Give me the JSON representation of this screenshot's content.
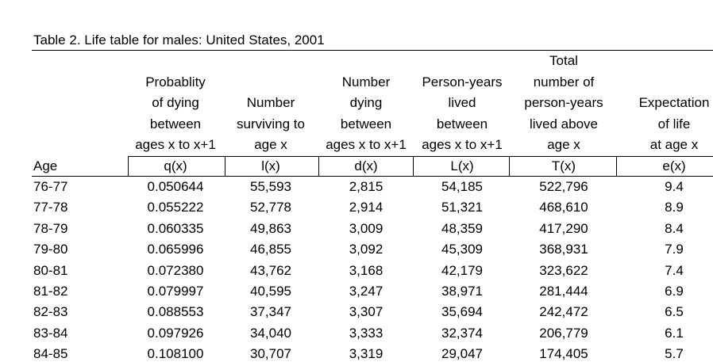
{
  "title": "Table 2. Life table for males: United States, 2001",
  "age_label": "Age",
  "columns": [
    {
      "lines": [
        "Probablity",
        "of dying",
        "between",
        "ages x to x+1"
      ],
      "symbol": "q(x)"
    },
    {
      "lines": [
        "Number",
        "surviving to",
        "age x"
      ],
      "symbol": "l(x)"
    },
    {
      "lines": [
        "Number",
        "dying",
        "between",
        "ages x to x+1"
      ],
      "symbol": "d(x)"
    },
    {
      "lines": [
        "Person-years",
        "lived",
        "between",
        "ages x to x+1"
      ],
      "symbol": "L(x)"
    },
    {
      "lines": [
        "Total",
        "number of",
        "person-years",
        "lived above",
        "age x"
      ],
      "symbol": "T(x)"
    },
    {
      "lines": [
        "Expectation",
        "of life",
        "at age x"
      ],
      "symbol": "e(x)"
    }
  ],
  "rows": [
    [
      "76-77",
      "0.050644",
      "55,593",
      "2,815",
      "54,185",
      "522,796",
      "9.4"
    ],
    [
      "77-78",
      "0.055222",
      "52,778",
      "2,914",
      "51,321",
      "468,610",
      "8.9"
    ],
    [
      "78-79",
      "0.060335",
      "49,863",
      "3,009",
      "48,359",
      "417,290",
      "8.4"
    ],
    [
      "79-80",
      "0.065996",
      "46,855",
      "3,092",
      "45,309",
      "368,931",
      "7.9"
    ],
    [
      "80-81",
      "0.072380",
      "43,762",
      "3,168",
      "42,179",
      "323,622",
      "7.4"
    ],
    [
      "81-82",
      "0.079997",
      "40,595",
      "3,247",
      "38,971",
      "281,444",
      "6.9"
    ],
    [
      "82-83",
      "0.088553",
      "37,347",
      "3,307",
      "35,694",
      "242,472",
      "6.5"
    ],
    [
      "83-84",
      "0.097926",
      "34,040",
      "3,333",
      "32,374",
      "206,779",
      "6.1"
    ],
    [
      "84-85",
      "0.108100",
      "30,707",
      "3,319",
      "29,047",
      "174,405",
      "5.7"
    ]
  ]
}
